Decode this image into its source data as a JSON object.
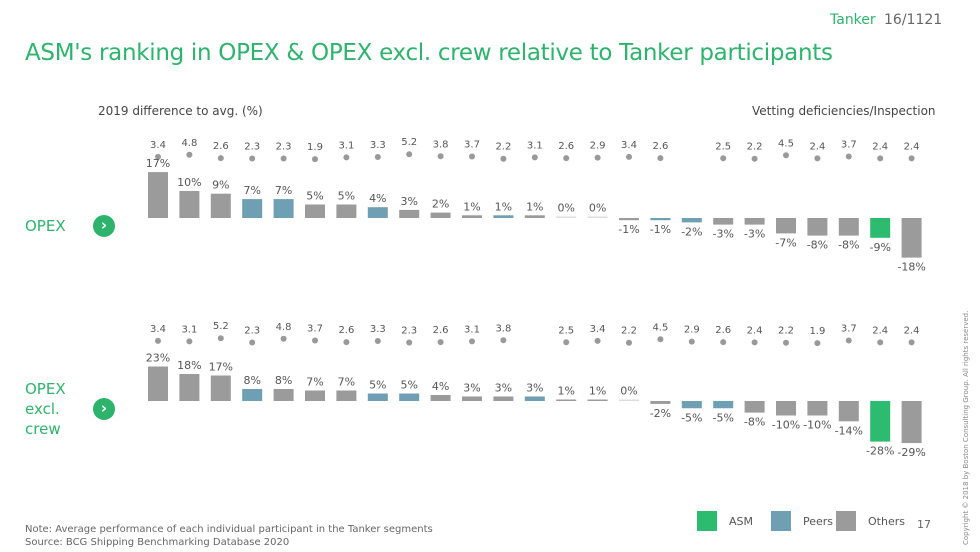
{
  "header": {
    "segment": "Tanker",
    "page": "16/1121",
    "title": "ASM's ranking in OPEX & OPEX excl. crew relative to Tanker participants"
  },
  "colors": {
    "asm": "#2dbb6f",
    "peers": "#6f9fb2",
    "others": "#9b9b9b",
    "accent": "#2db36c"
  },
  "chart_data": [
    {
      "type": "bar",
      "name": "OPEX",
      "ylabel": "2019 difference to avg. (%)",
      "secondary_label": "Vetting deficiencies/Inspection",
      "values": [
        17,
        10,
        9,
        7,
        7,
        5,
        5,
        4,
        3,
        2,
        1,
        1,
        1,
        0,
        0,
        -1,
        -1,
        -2,
        -3,
        -3,
        -7,
        -8,
        -8,
        -9,
        -18
      ],
      "labels": [
        "17%",
        "10%",
        "9%",
        "7%",
        "7%",
        "5%",
        "5%",
        "4%",
        "3%",
        "2%",
        "1%",
        "1%",
        "1%",
        "0%",
        "0%",
        "-1%",
        "-1%",
        "-2%",
        "-3%",
        "-3%",
        "-7%",
        "-8%",
        "-8%",
        "-9%",
        "-18%"
      ],
      "groups": [
        "Others",
        "Others",
        "Others",
        "Peers",
        "Peers",
        "Others",
        "Others",
        "Peers",
        "Others",
        "Others",
        "Others",
        "Peers",
        "Others",
        "Others",
        "Others",
        "Others",
        "Peers",
        "Peers",
        "Others",
        "Others",
        "Others",
        "Others",
        "Others",
        "ASM",
        "Others"
      ],
      "vetting": [
        "3.4",
        "4.8",
        "2.6",
        "2.3",
        "2.3",
        "1.9",
        "3.1",
        "3.3",
        "5.2",
        "3.8",
        "3.7",
        "2.2",
        "3.1",
        "2.6",
        "2.9",
        "3.4",
        "2.6",
        "",
        "2.5",
        "2.2",
        "4.5",
        "2.4",
        "3.7",
        "2.4",
        "2.4"
      ]
    },
    {
      "type": "bar",
      "name": "OPEX excl. crew",
      "ylabel": "2019 difference to avg. (%)",
      "secondary_label": "Vetting deficiencies/Inspection",
      "values": [
        23,
        18,
        17,
        8,
        8,
        7,
        7,
        5,
        5,
        4,
        3,
        3,
        3,
        1,
        1,
        0,
        -2,
        -5,
        -5,
        -8,
        -10,
        -10,
        -14,
        -28,
        -29
      ],
      "labels": [
        "23%",
        "18%",
        "17%",
        "8%",
        "8%",
        "7%",
        "7%",
        "5%",
        "5%",
        "4%",
        "3%",
        "3%",
        "3%",
        "1%",
        "1%",
        "0%",
        "-2%",
        "-5%",
        "-5%",
        "-8%",
        "-10%",
        "-10%",
        "-14%",
        "-28%",
        "-29%"
      ],
      "groups": [
        "Others",
        "Others",
        "Others",
        "Peers",
        "Others",
        "Others",
        "Others",
        "Peers",
        "Peers",
        "Others",
        "Others",
        "Others",
        "Peers",
        "Others",
        "Others",
        "Others",
        "Others",
        "Peers",
        "Peers",
        "Others",
        "Others",
        "Others",
        "Others",
        "ASM",
        "Others"
      ],
      "vetting": [
        "3.4",
        "3.1",
        "5.2",
        "2.3",
        "4.8",
        "3.7",
        "2.6",
        "3.3",
        "2.3",
        "2.6",
        "3.1",
        "3.8",
        "",
        "2.5",
        "3.4",
        "2.2",
        "4.5",
        "2.9",
        "2.6",
        "2.4",
        "2.2",
        "1.9",
        "3.7",
        "2.4",
        "2.4"
      ]
    }
  ],
  "rows": {
    "opex": "OPEX",
    "crew": [
      "OPEX",
      "excl.",
      "crew"
    ],
    "chevron": "›"
  },
  "legend": [
    "ASM",
    "Peers",
    "Others"
  ],
  "footer": {
    "note": "Note: Average performance of each individual participant in the Tanker segments",
    "source": "Source: BCG Shipping Benchmarking Database 2020",
    "page_number": "17",
    "copyright": "Copyright © 2018 by Boston Consulting Group. All rights reserved."
  }
}
